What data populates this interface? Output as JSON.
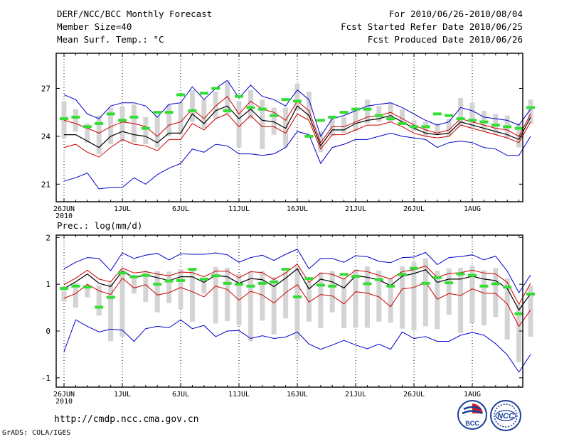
{
  "header": {
    "title": "DERF/NCC/BCC Monthly Forecast",
    "member_size": "Member Size=40",
    "variable": "Mean Surf. Temp.: °C",
    "period": "For 2010/06/26-2010/08/04",
    "started": "Fcst Started Refer Date 2010/06/25",
    "produced": "Fcst Produced Date 2010/06/26"
  },
  "precip_label": "Prec.: log(mm/d)",
  "footer": {
    "url": "http://cmdp.ncc.cma.gov.cn",
    "credit": "GrADS: COLA/IGES"
  },
  "logos": {
    "bcc": "BCC",
    "ncc": "NCC"
  },
  "colors": {
    "envelope": "#0000cc",
    "spread": "#cc0000",
    "mean": "#000000",
    "box": "#d4d4d4",
    "median": "#33dd33"
  },
  "chart_data": [
    {
      "type": "line",
      "name": "temperature",
      "ylim": [
        19.9,
        29.2
      ],
      "yticks": [
        21,
        24,
        27
      ],
      "xticks": [
        {
          "day": 0,
          "label": "26JUN",
          "sub": "2010"
        },
        {
          "day": 5,
          "label": "1JUL"
        },
        {
          "day": 10,
          "label": "6JUL"
        },
        {
          "day": 15,
          "label": "11JUL"
        },
        {
          "day": 20,
          "label": "16JUL"
        },
        {
          "day": 25,
          "label": "21JUL"
        },
        {
          "day": 30,
          "label": "26JUL"
        },
        {
          "day": 35,
          "label": "1AUG"
        }
      ],
      "days": 40,
      "max": [
        26.6,
        26.3,
        25.4,
        25.1,
        25.9,
        26.1,
        26.1,
        25.9,
        25.2,
        26.0,
        26.1,
        27.1,
        26.3,
        27.0,
        27.5,
        26.4,
        27.2,
        26.5,
        26.3,
        25.9,
        26.9,
        26.3,
        24.0,
        25.1,
        25.3,
        25.6,
        25.9,
        26.0,
        26.1,
        25.8,
        25.4,
        25.0,
        24.7,
        24.9,
        25.8,
        25.6,
        25.2,
        25.1,
        25.0,
        24.7,
        25.7
      ],
      "upper": [
        25.0,
        24.8,
        24.5,
        24.2,
        24.6,
        24.9,
        24.8,
        24.6,
        24.0,
        24.7,
        24.9,
        25.7,
        25.1,
        25.9,
        26.5,
        25.4,
        26.2,
        25.7,
        25.5,
        25.0,
        26.2,
        25.6,
        23.6,
        24.6,
        24.6,
        24.9,
        25.2,
        25.3,
        25.5,
        25.1,
        24.7,
        24.4,
        24.2,
        24.4,
        25.1,
        24.9,
        24.7,
        24.5,
        24.4,
        24.0,
        25.4
      ],
      "mean": [
        24.1,
        24.1,
        23.7,
        23.3,
        24.0,
        24.3,
        24.1,
        24.0,
        23.6,
        24.2,
        24.2,
        25.4,
        24.8,
        25.6,
        25.9,
        25.1,
        25.7,
        25.0,
        24.9,
        24.5,
        25.9,
        25.3,
        23.4,
        24.4,
        24.4,
        24.8,
        25.0,
        25.1,
        25.3,
        24.9,
        24.5,
        24.2,
        24.1,
        24.2,
        24.9,
        24.7,
        24.5,
        24.3,
        24.1,
        23.8,
        25.2
      ],
      "lower": [
        23.3,
        23.5,
        23.0,
        22.7,
        23.3,
        23.8,
        23.5,
        23.4,
        23.1,
        23.8,
        23.8,
        24.8,
        24.4,
        25.1,
        25.4,
        24.6,
        25.3,
        24.6,
        24.6,
        24.2,
        25.4,
        25.0,
        23.2,
        24.1,
        24.1,
        24.4,
        24.7,
        24.7,
        24.9,
        24.6,
        24.2,
        24.0,
        23.9,
        24.0,
        24.7,
        24.5,
        24.3,
        24.1,
        23.9,
        23.6,
        24.9
      ],
      "min": [
        21.2,
        21.4,
        21.7,
        20.7,
        20.8,
        20.8,
        21.4,
        21.0,
        21.6,
        22.0,
        22.3,
        23.2,
        23.0,
        23.5,
        23.4,
        22.9,
        22.9,
        22.8,
        22.9,
        23.3,
        24.3,
        24.1,
        22.3,
        23.3,
        23.5,
        23.8,
        23.8,
        24.0,
        24.2,
        24.0,
        23.9,
        23.8,
        23.3,
        23.6,
        23.7,
        23.6,
        23.3,
        23.2,
        22.8,
        22.8,
        24.0
      ],
      "box_hi": [
        26.2,
        25.7,
        24.8,
        25.3,
        25.8,
        25.9,
        26.0,
        25.2,
        25.3,
        26.0,
        26.1,
        26.9,
        26.3,
        26.8,
        27.4,
        26.2,
        26.9,
        26.3,
        25.8,
        25.8,
        27.3,
        26.8,
        24.3,
        25.2,
        25.2,
        25.7,
        26.3,
        25.9,
        26.1,
        25.7,
        25.0,
        24.9,
        24.8,
        25.1,
        26.4,
        26.1,
        25.6,
        25.4,
        25.3,
        24.8,
        26.3
      ],
      "box_lo": [
        23.9,
        24.3,
        23.6,
        22.9,
        23.5,
        23.7,
        23.6,
        23.5,
        23.3,
        24.0,
        24.1,
        24.9,
        24.5,
        25.1,
        25.4,
        23.3,
        25.1,
        23.2,
        24.1,
        23.3,
        25.6,
        25.1,
        23.0,
        24.0,
        24.2,
        24.3,
        24.8,
        24.9,
        24.9,
        24.8,
        24.3,
        24.0,
        24.1,
        24.0,
        24.7,
        24.5,
        24.3,
        24.1,
        23.9,
        23.3,
        24.8
      ],
      "median": [
        25.1,
        25.2,
        24.6,
        24.8,
        25.4,
        25.0,
        25.2,
        24.5,
        25.5,
        25.5,
        26.6,
        25.6,
        26.7,
        27.0,
        25.6,
        26.5,
        25.8,
        25.7,
        25.3,
        26.3,
        26.2,
        24.0,
        25.0,
        25.2,
        25.5,
        25.7,
        25.7,
        25.3,
        25.1,
        24.8,
        24.6,
        24.6,
        25.4,
        25.3,
        25.1,
        25.0,
        24.9,
        24.7,
        24.6,
        24.5,
        25.8
      ]
    },
    {
      "type": "line",
      "name": "precipitation",
      "ylim": [
        -1.2,
        2.05
      ],
      "yticks": [
        -1,
        0,
        1,
        2
      ],
      "xticks": [
        {
          "day": 0,
          "label": "26JUN",
          "sub": "2010"
        },
        {
          "day": 5,
          "label": "1JUL"
        },
        {
          "day": 10,
          "label": "6JUL"
        },
        {
          "day": 15,
          "label": "11JUL"
        },
        {
          "day": 20,
          "label": "16JUL"
        },
        {
          "day": 25,
          "label": "21JUL"
        },
        {
          "day": 30,
          "label": "26JUL"
        },
        {
          "day": 35,
          "label": "1AUG"
        }
      ],
      "days": 40,
      "max": [
        1.33,
        1.47,
        1.57,
        1.55,
        1.29,
        1.67,
        1.55,
        1.62,
        1.66,
        1.52,
        1.65,
        1.64,
        1.64,
        1.67,
        1.63,
        1.47,
        1.57,
        1.62,
        1.51,
        1.64,
        1.75,
        1.33,
        1.55,
        1.55,
        1.47,
        1.61,
        1.59,
        1.49,
        1.46,
        1.57,
        1.58,
        1.68,
        1.42,
        1.57,
        1.59,
        1.63,
        1.52,
        1.6,
        1.28,
        0.82,
        1.2
      ],
      "upper": [
        0.99,
        1.13,
        1.3,
        1.11,
        1.05,
        1.35,
        1.24,
        1.27,
        1.22,
        1.18,
        1.26,
        1.25,
        1.16,
        1.28,
        1.28,
        1.14,
        1.27,
        1.25,
        1.1,
        1.24,
        1.43,
        1.04,
        1.24,
        1.21,
        1.11,
        1.3,
        1.27,
        1.19,
        1.11,
        1.27,
        1.31,
        1.39,
        1.15,
        1.23,
        1.25,
        1.3,
        1.24,
        1.22,
        1.04,
        0.57,
        1.02
      ],
      "mean": [
        0.91,
        1.05,
        1.22,
        1.02,
        0.95,
        1.28,
        1.14,
        1.2,
        1.14,
        1.08,
        1.16,
        1.16,
        1.04,
        1.19,
        1.16,
        1.02,
        1.12,
        1.1,
        0.95,
        1.13,
        1.33,
        0.9,
        1.11,
        1.05,
        0.92,
        1.18,
        1.15,
        1.09,
        0.97,
        1.17,
        1.23,
        1.31,
        1.04,
        1.11,
        1.11,
        1.17,
        1.11,
        1.08,
        0.91,
        0.45,
        0.8
      ],
      "lower": [
        0.7,
        0.8,
        1.0,
        0.86,
        0.78,
        1.13,
        0.92,
        0.99,
        0.77,
        0.82,
        0.93,
        0.84,
        0.73,
        0.96,
        0.89,
        0.66,
        0.85,
        0.77,
        0.6,
        0.82,
        0.99,
        0.62,
        0.78,
        0.75,
        0.58,
        0.84,
        0.81,
        0.73,
        0.52,
        0.9,
        0.93,
        1.04,
        0.68,
        0.8,
        0.76,
        0.9,
        0.81,
        0.8,
        0.58,
        0.1,
        0.45
      ],
      "min": [
        -0.44,
        0.24,
        0.1,
        -0.02,
        0.04,
        0.02,
        -0.22,
        0.05,
        0.1,
        0.07,
        0.24,
        0.05,
        0.12,
        -0.12,
        0.0,
        0.01,
        -0.16,
        -0.1,
        -0.16,
        -0.13,
        -0.02,
        -0.28,
        -0.39,
        -0.3,
        -0.2,
        -0.3,
        -0.38,
        -0.28,
        -0.39,
        -0.02,
        -0.16,
        -0.12,
        -0.22,
        -0.22,
        -0.09,
        -0.03,
        -0.09,
        -0.27,
        -0.51,
        -0.88,
        -0.5
      ],
      "box_hi": [
        0.87,
        1.02,
        0.98,
        0.98,
        1.03,
        1.33,
        1.2,
        1.29,
        1.28,
        1.27,
        1.32,
        1.3,
        1.13,
        1.37,
        1.35,
        1.22,
        1.27,
        1.28,
        1.15,
        1.27,
        1.38,
        1.05,
        1.25,
        1.28,
        1.12,
        1.32,
        1.38,
        1.29,
        1.12,
        1.38,
        1.47,
        1.55,
        1.29,
        1.34,
        1.35,
        1.4,
        1.3,
        1.35,
        1.13,
        0.57,
        0.97
      ],
      "box_lo": [
        0.63,
        0.5,
        0.72,
        0.33,
        -0.22,
        -0.12,
        0.8,
        0.62,
        0.4,
        0.6,
        0.47,
        0.2,
        0.8,
        0.16,
        0.21,
        0.12,
        -0.22,
        0.22,
        -0.07,
        0.27,
        -0.18,
        0.2,
        0.06,
        0.4,
        0.06,
        0.07,
        0.07,
        0.2,
        0.18,
        0.05,
        0.01,
        0.1,
        0.04,
        0.35,
        -0.04,
        0.17,
        0.12,
        0.3,
        -0.18,
        -0.67,
        -0.12
      ],
      "median": [
        0.91,
        0.96,
        0.94,
        0.51,
        0.72,
        1.24,
        1.16,
        1.19,
        1.0,
        1.07,
        1.08,
        1.32,
        1.11,
        1.18,
        1.02,
        1.0,
        0.96,
        1.02,
        1.05,
        1.32,
        0.73,
        1.12,
        0.98,
        0.96,
        1.21,
        1.17,
        1.01,
        1.1,
        0.96,
        1.21,
        1.34,
        1.02,
        1.14,
        1.03,
        1.22,
        1.19,
        0.96,
        1.01,
        0.94,
        0.37,
        0.79
      ]
    }
  ]
}
